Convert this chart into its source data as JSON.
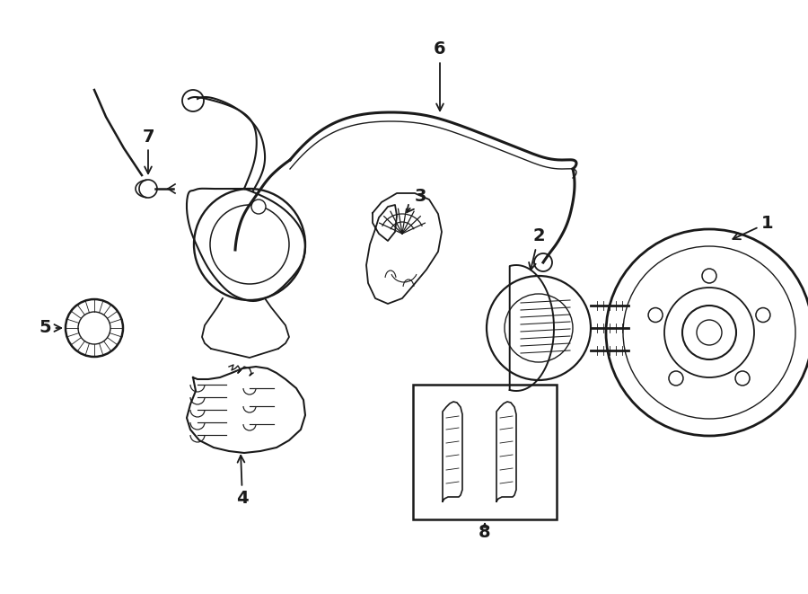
{
  "bg_color": "#ffffff",
  "line_color": "#1a1a1a",
  "fig_width": 9.0,
  "fig_height": 6.61,
  "dpi": 100,
  "lw_main": 1.5,
  "lw_thin": 0.8,
  "fontsize_label": 14
}
